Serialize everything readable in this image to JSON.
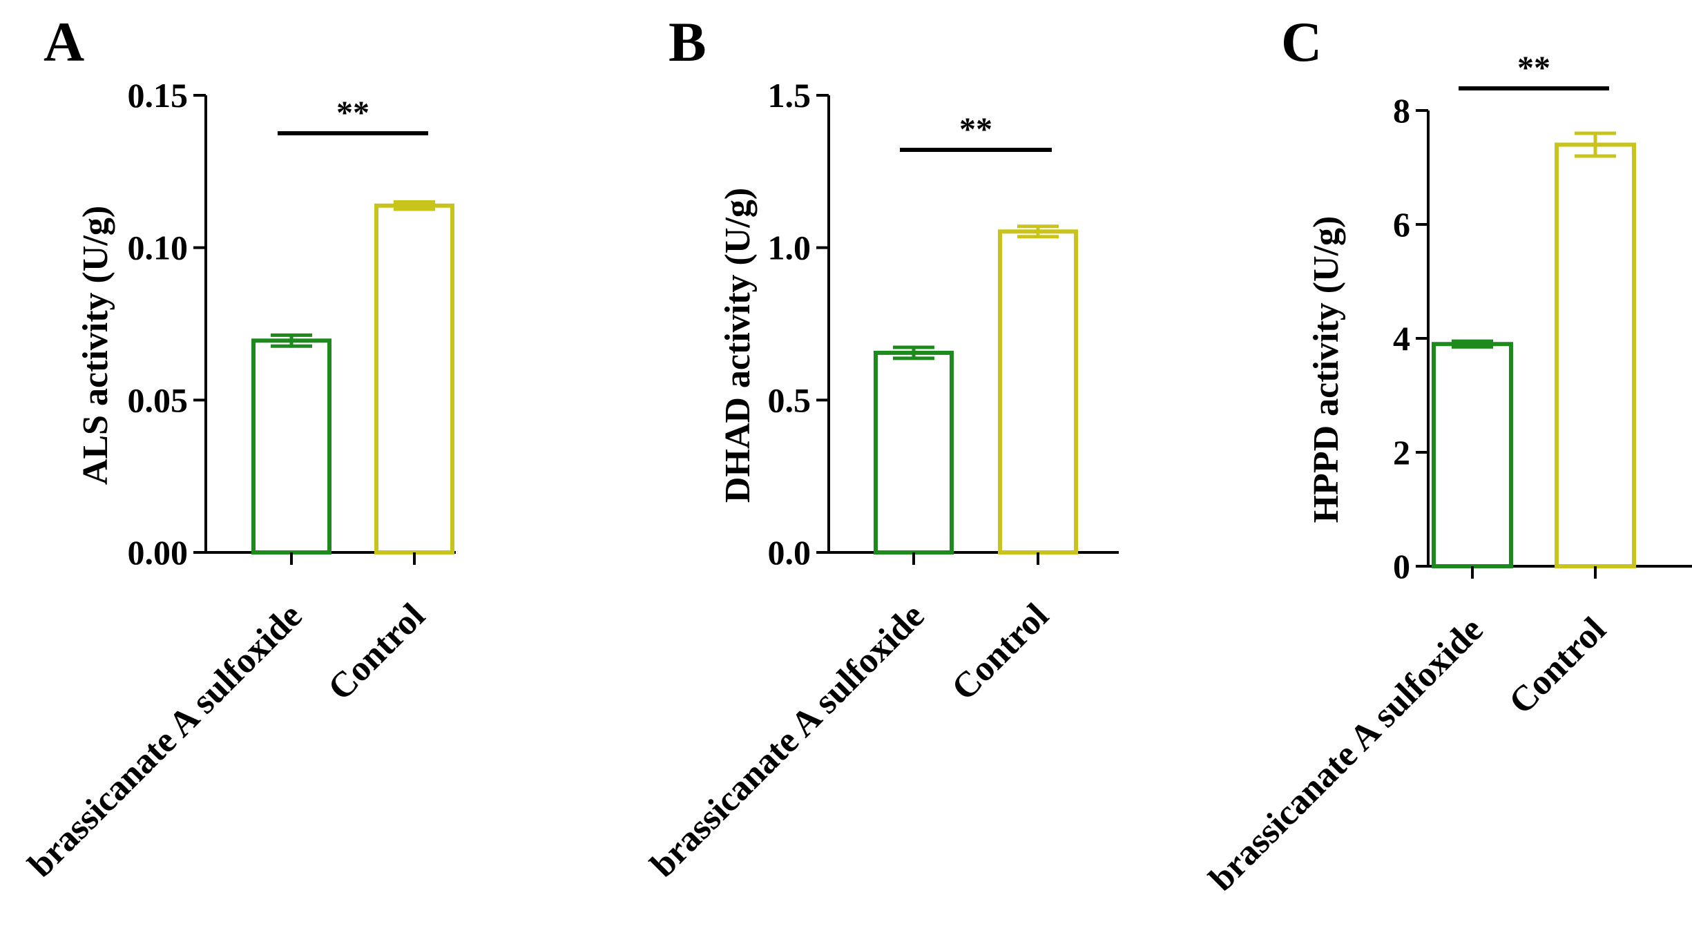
{
  "chart_data": [
    {
      "type": "bar",
      "panel_label": "A",
      "categories": [
        "brassicanate A sulfoxide",
        "Control"
      ],
      "values": [
        0.0695,
        0.1138
      ],
      "errors": [
        0.0018,
        0.0012
      ],
      "colors": [
        "#1e8a1e",
        "#c8c41b"
      ],
      "ylabel": "ALS activity (U/g)",
      "xlabel": "",
      "ylim": [
        0,
        0.15
      ],
      "yticks": [
        0.0,
        0.05,
        0.1,
        0.15
      ],
      "ytick_labels": [
        "0.00",
        "0.05",
        "0.10",
        "0.15"
      ],
      "significance": {
        "label": "**",
        "between": [
          0,
          1
        ]
      },
      "grid": false,
      "legend": false
    },
    {
      "type": "bar",
      "panel_label": "B",
      "categories": [
        "brassicanate A sulfoxide",
        "Control"
      ],
      "values": [
        0.655,
        1.053
      ],
      "errors": [
        0.018,
        0.017
      ],
      "colors": [
        "#1e8a1e",
        "#c8c41b"
      ],
      "ylabel": "DHAD activity (U/g)",
      "xlabel": "",
      "ylim": [
        0,
        1.5
      ],
      "yticks": [
        0.0,
        0.5,
        1.0,
        1.5
      ],
      "ytick_labels": [
        "0.0",
        "0.5",
        "1.0",
        "1.5"
      ],
      "significance": {
        "label": "**",
        "between": [
          0,
          1
        ]
      },
      "grid": false,
      "legend": false
    },
    {
      "type": "bar",
      "panel_label": "C",
      "categories": [
        "brassicanate A sulfoxide",
        "Control"
      ],
      "values": [
        3.9,
        7.4
      ],
      "errors": [
        0.05,
        0.2
      ],
      "colors": [
        "#1e8a1e",
        "#c8c41b"
      ],
      "ylabel": "HPPD activity (U/g)",
      "xlabel": "",
      "ylim": [
        0,
        8
      ],
      "yticks": [
        0,
        2,
        4,
        6,
        8
      ],
      "ytick_labels": [
        "0",
        "2",
        "4",
        "6",
        "8"
      ],
      "significance": {
        "label": "**",
        "between": [
          0,
          1
        ]
      },
      "grid": false,
      "legend": false
    }
  ]
}
